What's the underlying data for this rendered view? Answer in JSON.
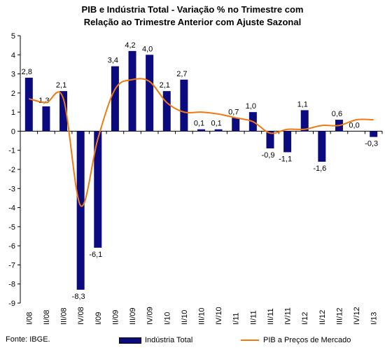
{
  "title_line1": "PIB e Indústria Total - Variação % no Trimestre com",
  "title_line2": "Relação ao Trimestre Anterior com Ajuste Sazonal",
  "source": "Fonte: IBGE.",
  "legend": {
    "bars": "Indústria Total",
    "line": "PIB a Preços de Mercado"
  },
  "colors": {
    "bars": "#0b0b7f",
    "line": "#f07a12",
    "axis": "#000000"
  },
  "chart_data": {
    "type": "bar",
    "categories": [
      "I/08",
      "II/08",
      "III/08",
      "IV/08",
      "I/09",
      "II/09",
      "III/09",
      "IV/09",
      "I/10",
      "II/10",
      "III/10",
      "IV/10",
      "I/11",
      "II/11",
      "III/11",
      "IV/11",
      "I/12",
      "II/12",
      "III/12",
      "IV/12",
      "I/13"
    ],
    "series": [
      {
        "name": "Indústria Total",
        "type": "bar",
        "values": [
          2.8,
          1.3,
          2.1,
          -8.3,
          -6.1,
          3.4,
          4.2,
          4.0,
          2.1,
          2.7,
          0.1,
          0.1,
          0.7,
          1.0,
          -0.9,
          -1.1,
          1.1,
          -1.6,
          0.6,
          0.0,
          -0.3
        ],
        "labels": [
          "2,8",
          "1,3",
          "2,1",
          "-8,3",
          "-6,1",
          "3,4",
          "4,2",
          "4,0",
          "2,1",
          "2,7",
          "0,1",
          "0,1",
          "0,7",
          "1,0",
          "-0,9",
          "-1,1",
          "1,1",
          "-1,6",
          "0,6",
          "0,0",
          "-0,3"
        ]
      },
      {
        "name": "PIB a Preços de Mercado",
        "type": "line",
        "values": [
          1.7,
          1.5,
          1.7,
          -3.9,
          -0.4,
          2.2,
          2.7,
          2.6,
          1.5,
          1.0,
          1.0,
          0.9,
          0.7,
          0.5,
          -0.1,
          0.1,
          0.1,
          0.3,
          0.3,
          0.6,
          0.6
        ]
      }
    ],
    "ylim": [
      -9,
      5
    ],
    "yticks": [
      -9,
      -8,
      -7,
      -6,
      -5,
      -4,
      -3,
      -2,
      -1,
      0,
      1,
      2,
      3,
      4,
      5
    ],
    "grid": false,
    "legend_position": "bottom"
  }
}
